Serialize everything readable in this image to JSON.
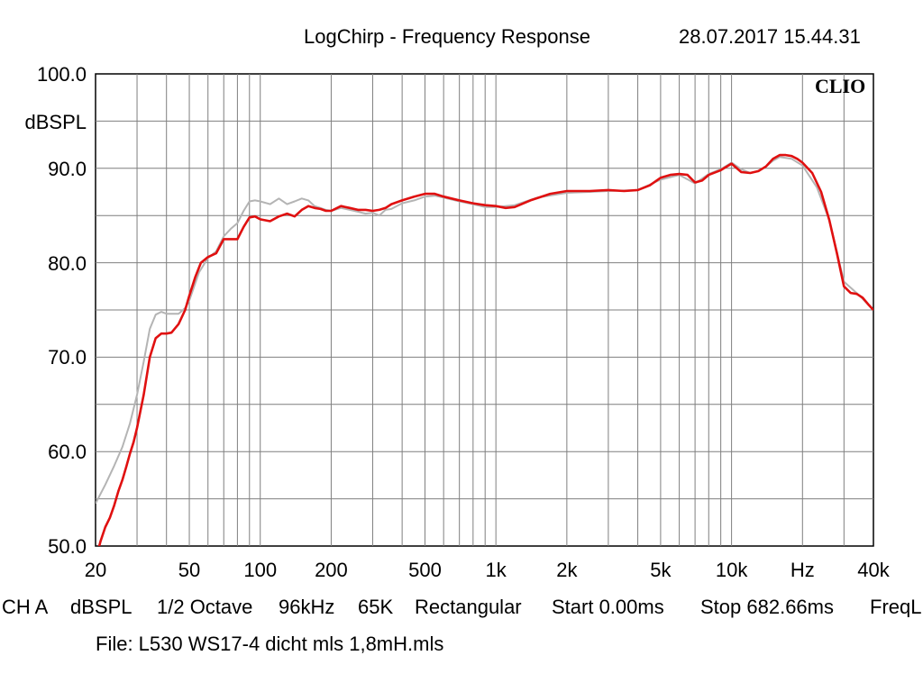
{
  "header": {
    "title": "LogChirp - Frequency Response",
    "timestamp": "28.07.2017 15.44.31"
  },
  "brand": "CLIO",
  "footer": {
    "channel": "CH A",
    "unit": "dBSPL",
    "smoothing": "1/2 Octave",
    "sample_rate": "96kHz",
    "size": "65K",
    "window": "Rectangular",
    "start": "Start 0.00ms",
    "stop": "Stop 682.66ms",
    "freq_label": "FreqL",
    "file": "File: L530 WS17-4 dicht mls 1,8mH.mls"
  },
  "colors": {
    "primary_series": "#e01010",
    "reference_series": "#b4b4b4",
    "grid": "#7f7f7f"
  },
  "chart_data": {
    "type": "line",
    "title": "LogChirp - Frequency Response",
    "xscale": "log",
    "xlim": [
      20,
      40000
    ],
    "ylim": [
      50,
      100
    ],
    "ylabel": "dBSPL",
    "xlabel": "Hz",
    "grid": true,
    "yticks": [
      {
        "value": 100,
        "label": "100.0"
      },
      {
        "value": 90,
        "label": "90.0"
      },
      {
        "value": 80,
        "label": "80.0"
      },
      {
        "value": 70,
        "label": "70.0"
      },
      {
        "value": 60,
        "label": "60.0"
      },
      {
        "value": 50,
        "label": "50.0"
      }
    ],
    "xticks": [
      {
        "value": 20,
        "label": "20"
      },
      {
        "value": 50,
        "label": "50"
      },
      {
        "value": 100,
        "label": "100"
      },
      {
        "value": 200,
        "label": "200"
      },
      {
        "value": 500,
        "label": "500"
      },
      {
        "value": 1000,
        "label": "1k"
      },
      {
        "value": 2000,
        "label": "2k"
      },
      {
        "value": 5000,
        "label": "5k"
      },
      {
        "value": 10000,
        "label": "10k"
      },
      {
        "value": 20000,
        "label": "Hz"
      },
      {
        "value": 40000,
        "label": "40k"
      }
    ],
    "series": [
      {
        "color": "#b4b4b4",
        "x": [
          20,
          22,
          24,
          26,
          28,
          30,
          32,
          34,
          36,
          38,
          40,
          42,
          45,
          48,
          50,
          55,
          60,
          65,
          70,
          75,
          80,
          85,
          90,
          95,
          100,
          110,
          120,
          130,
          140,
          150,
          160,
          170,
          180,
          190,
          200,
          220,
          240,
          260,
          280,
          300,
          320,
          340,
          360,
          400,
          450,
          500,
          550,
          600,
          700,
          800,
          900,
          1000,
          1200,
          1500,
          2000,
          2500,
          3000,
          4000,
          5000,
          6000,
          7000,
          8000,
          9000,
          10000,
          11000,
          12000,
          13000,
          14000,
          15000,
          16000,
          18000,
          20000,
          23000,
          26000,
          30000,
          35000,
          40000
        ],
        "y": [
          54.5,
          56.5,
          58.5,
          60.5,
          63,
          66,
          69.5,
          73,
          74.5,
          74.8,
          74.6,
          74.6,
          74.6,
          75.2,
          76,
          79,
          80.5,
          81.2,
          82.8,
          83.6,
          84.2,
          85.5,
          86.5,
          86.6,
          86.5,
          86.2,
          86.8,
          86.2,
          86.5,
          86.8,
          86.6,
          86.0,
          85.8,
          85.6,
          85.5,
          85.8,
          85.6,
          85.4,
          85.2,
          85.3,
          85.0,
          85.6,
          85.7,
          86.3,
          86.6,
          87.0,
          87.1,
          86.9,
          86.5,
          86.2,
          85.9,
          85.9,
          86.1,
          86.9,
          87.4,
          87.5,
          87.6,
          87.7,
          88.8,
          89.3,
          88.4,
          89.4,
          89.9,
          90.6,
          89.9,
          89.5,
          89.7,
          90.2,
          90.8,
          91.2,
          91.0,
          90.3,
          88.0,
          84.5,
          78.0,
          76.5,
          75.0
        ]
      },
      {
        "color": "#e01010",
        "x": [
          20,
          21,
          22,
          23,
          24,
          25,
          26,
          27,
          28,
          29,
          30,
          32,
          34,
          36,
          38,
          40,
          42,
          45,
          48,
          50,
          53,
          56,
          60,
          65,
          70,
          75,
          80,
          85,
          90,
          95,
          100,
          110,
          120,
          130,
          140,
          150,
          160,
          170,
          180,
          190,
          200,
          220,
          240,
          260,
          280,
          300,
          320,
          340,
          360,
          400,
          450,
          500,
          550,
          600,
          700,
          800,
          900,
          1000,
          1100,
          1200,
          1400,
          1700,
          2000,
          2500,
          3000,
          3500,
          4000,
          4500,
          5000,
          5500,
          6000,
          6500,
          7000,
          7500,
          8000,
          9000,
          10000,
          11000,
          12000,
          13000,
          14000,
          15000,
          16000,
          17000,
          18000,
          19000,
          20000,
          22000,
          24000,
          26000,
          28000,
          30000,
          32000,
          34000,
          36000,
          38000,
          40000
        ],
        "y": [
          48.5,
          50.5,
          52.0,
          53.0,
          54.3,
          55.8,
          57.0,
          58.4,
          59.8,
          61.0,
          62.5,
          66.0,
          70.0,
          72.0,
          72.5,
          72.5,
          72.6,
          73.5,
          75.0,
          76.5,
          78.5,
          80.0,
          80.6,
          81.0,
          82.5,
          82.5,
          82.5,
          83.8,
          84.8,
          84.9,
          84.6,
          84.4,
          84.9,
          85.2,
          84.9,
          85.6,
          86.0,
          85.8,
          85.7,
          85.5,
          85.5,
          86.0,
          85.8,
          85.6,
          85.6,
          85.5,
          85.6,
          85.8,
          86.2,
          86.6,
          87.0,
          87.3,
          87.3,
          87.0,
          86.6,
          86.3,
          86.1,
          86.0,
          85.8,
          85.9,
          86.6,
          87.3,
          87.6,
          87.6,
          87.7,
          87.6,
          87.7,
          88.2,
          89.0,
          89.3,
          89.4,
          89.3,
          88.5,
          88.7,
          89.3,
          89.8,
          90.5,
          89.6,
          89.5,
          89.7,
          90.2,
          91.0,
          91.4,
          91.4,
          91.3,
          91.0,
          90.6,
          89.5,
          87.5,
          84.5,
          81.0,
          77.5,
          76.8,
          76.7,
          76.3,
          75.6,
          75.0
        ]
      }
    ]
  }
}
